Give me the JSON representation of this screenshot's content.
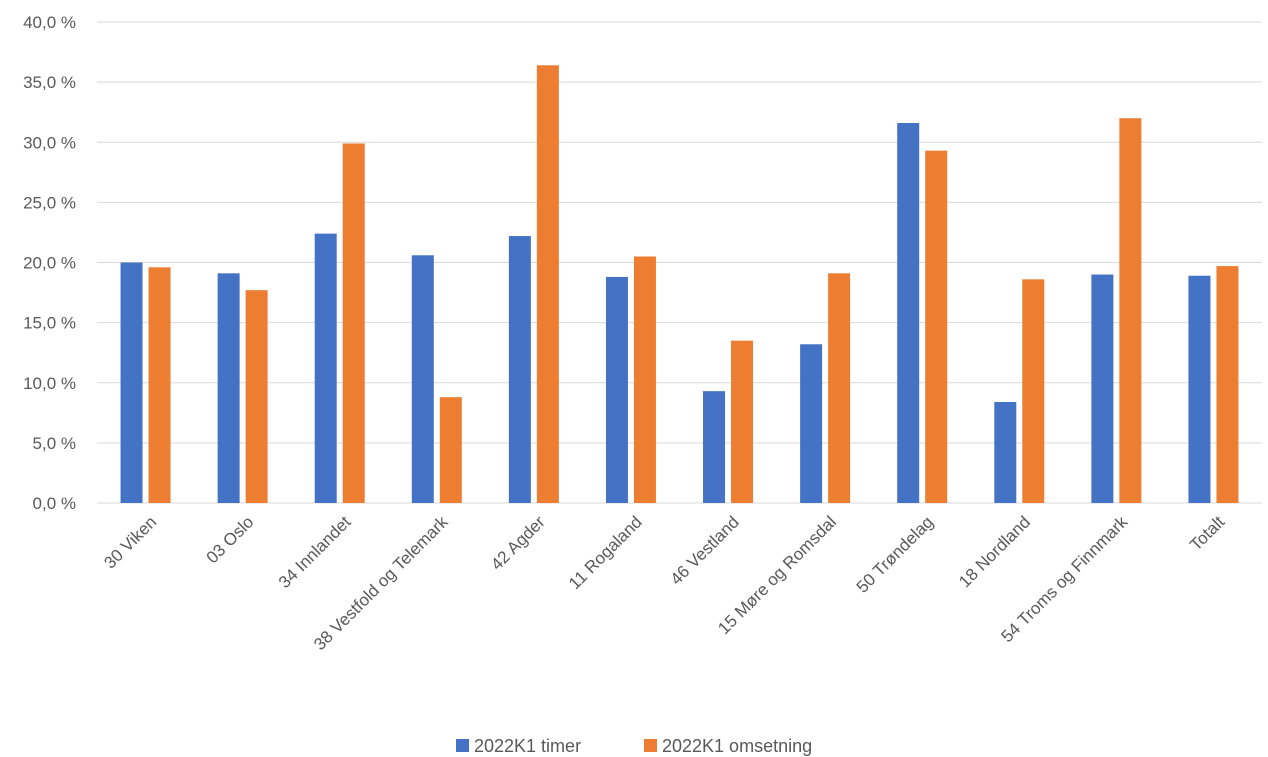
{
  "chart_data": {
    "type": "bar",
    "categories": [
      "30 Viken",
      "03 Oslo",
      "34 Innlandet",
      "38 Vestfold og Telemark",
      "42 Agder",
      "11 Rogaland",
      "46 Vestland",
      "15 Møre og Romsdal",
      "50 Trøndelag",
      "18 Nordland",
      "54 Troms og Finnmark",
      "Totalt"
    ],
    "series": [
      {
        "name": "2022K1 timer",
        "color": "#4472c4",
        "values": [
          20.0,
          19.1,
          22.4,
          20.6,
          22.2,
          18.8,
          9.3,
          13.2,
          31.6,
          8.4,
          19.0,
          18.9
        ]
      },
      {
        "name": "2022K1 omsetning",
        "color": "#ed7d31",
        "values": [
          19.6,
          17.7,
          29.9,
          8.8,
          36.4,
          20.5,
          13.5,
          19.1,
          29.3,
          18.6,
          32.0,
          19.7
        ]
      }
    ],
    "ylim": [
      0,
      40
    ],
    "yticks": [
      "0,0 %",
      "5,0 %",
      "10,0 %",
      "15,0 %",
      "20,0 %",
      "25,0 %",
      "30,0 %",
      "35,0 %",
      "40,0 %"
    ],
    "grid": true,
    "legend": "bottom"
  }
}
